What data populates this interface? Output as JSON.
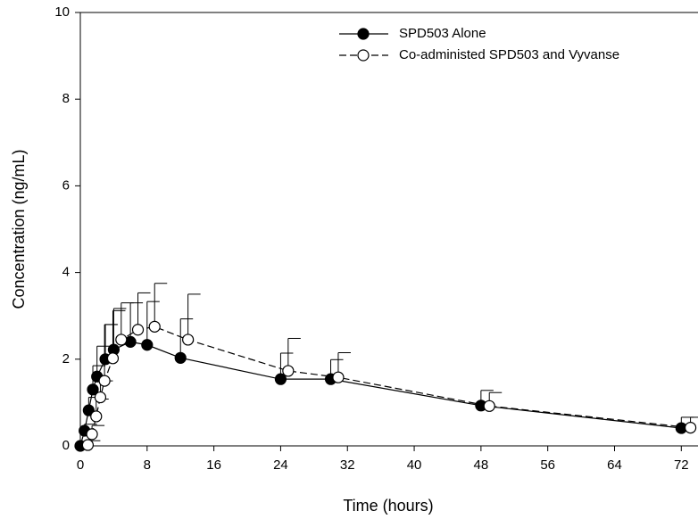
{
  "chart_data": {
    "type": "line",
    "xlabel": "Time (hours)",
    "ylabel": "Concentration (ng/mL)",
    "xlim": [
      0,
      74
    ],
    "xticks": [
      0,
      8,
      16,
      24,
      32,
      40,
      48,
      56,
      64,
      72
    ],
    "ylim": [
      0,
      10
    ],
    "yticks": [
      0,
      2,
      4,
      6,
      8,
      10
    ],
    "legend": "top-right",
    "series": [
      {
        "name": "SPD503 Alone",
        "color": "#000000",
        "line_style": "solid",
        "marker": "filled",
        "x": [
          0,
          0.5,
          1,
          1.5,
          2,
          3,
          4,
          6,
          8,
          12,
          24,
          30,
          48,
          72
        ],
        "values": [
          0,
          0.35,
          0.82,
          1.3,
          1.6,
          2.0,
          2.22,
          2.4,
          2.33,
          2.03,
          1.54,
          1.54,
          0.93,
          0.41
        ],
        "errors": [
          0.05,
          0.15,
          0.3,
          0.55,
          0.7,
          0.8,
          0.95,
          0.9,
          1.0,
          0.9,
          0.6,
          0.45,
          0.35,
          0.25
        ]
      },
      {
        "name": "Co-administed SPD503 and Vyvanse",
        "color": "#000000",
        "line_style": "dashed",
        "marker": "open",
        "x": [
          0.9,
          1.4,
          1.9,
          2.4,
          2.9,
          3.9,
          4.9,
          6.9,
          8.9,
          12.9,
          24.9,
          30.9,
          49,
          73.1
        ],
        "values": [
          0.02,
          0.27,
          0.68,
          1.12,
          1.5,
          2.02,
          2.45,
          2.68,
          2.75,
          2.45,
          1.73,
          1.58,
          0.92,
          0.42
        ],
        "errors": [
          0.1,
          0.2,
          0.4,
          0.38,
          1.3,
          1.1,
          0.85,
          0.85,
          1.0,
          1.05,
          0.75,
          0.57,
          0.31,
          0.24
        ]
      }
    ]
  }
}
